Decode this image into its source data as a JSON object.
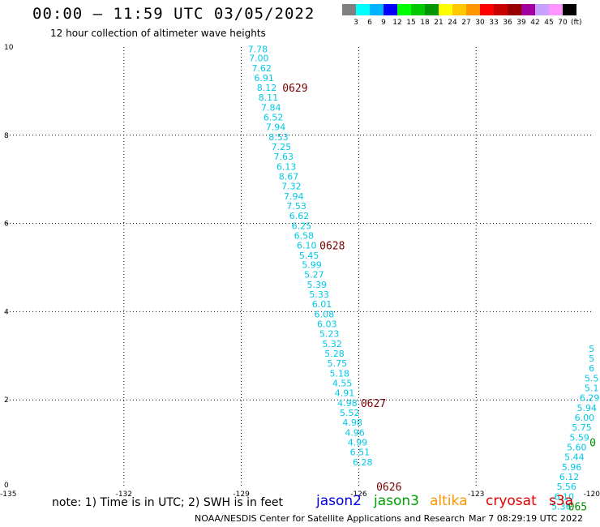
{
  "title": "00:00 – 11:59 UTC 03/05/2022",
  "subtitle": "12 hour collection of altimeter wave heights",
  "color_scale": {
    "labels": [
      "3",
      "6",
      "9",
      "12",
      "15",
      "18",
      "21",
      "24",
      "27",
      "30",
      "33",
      "36",
      "39",
      "42",
      "45",
      "70"
    ],
    "unit": "(ft)",
    "colors": [
      "#808080",
      "#00ffff",
      "#00b4ff",
      "#0000ff",
      "#00ff00",
      "#00c800",
      "#009600",
      "#ffff00",
      "#ffc800",
      "#ff9600",
      "#ff0000",
      "#c80000",
      "#960000",
      "#a000a0",
      "#c8a0ff",
      "#ff96ff",
      "#000000"
    ]
  },
  "map": {
    "lon_range": [
      -135,
      -120
    ],
    "lat_range": [
      0,
      10
    ],
    "x_ticks": [
      "-135",
      "-132",
      "-129",
      "-126",
      "-123",
      "-120"
    ],
    "y_ticks": [
      "0",
      "2",
      "4",
      "6",
      "8",
      "10"
    ]
  },
  "tracks": [
    {
      "color": "#00c8e6",
      "points": [
        {
          "lon": -128.58,
          "lat": 9.95,
          "v": "7.78"
        },
        {
          "lon": -128.55,
          "lat": 9.75,
          "v": "7.00"
        },
        {
          "lon": -128.48,
          "lat": 9.52,
          "v": "7.62"
        },
        {
          "lon": -128.42,
          "lat": 9.3,
          "v": "6.91"
        },
        {
          "lon": -128.35,
          "lat": 9.08,
          "v": "8.12"
        },
        {
          "lon": -128.31,
          "lat": 8.86,
          "v": "8.11"
        },
        {
          "lon": -128.24,
          "lat": 8.63,
          "v": "7.84"
        },
        {
          "lon": -128.18,
          "lat": 8.41,
          "v": "6.52"
        },
        {
          "lon": -128.12,
          "lat": 8.19,
          "v": "7.94"
        },
        {
          "lon": -128.05,
          "lat": 7.96,
          "v": "8.53"
        },
        {
          "lon": -127.98,
          "lat": 7.74,
          "v": "7.25"
        },
        {
          "lon": -127.92,
          "lat": 7.52,
          "v": "7.63"
        },
        {
          "lon": -127.85,
          "lat": 7.29,
          "v": "6.13"
        },
        {
          "lon": -127.79,
          "lat": 7.07,
          "v": "8.67"
        },
        {
          "lon": -127.72,
          "lat": 6.85,
          "v": "7.32"
        },
        {
          "lon": -127.66,
          "lat": 6.62,
          "v": "7.94"
        },
        {
          "lon": -127.59,
          "lat": 6.4,
          "v": "7.53"
        },
        {
          "lon": -127.52,
          "lat": 6.18,
          "v": "6.62"
        },
        {
          "lon": -127.46,
          "lat": 5.95,
          "v": "6.25"
        },
        {
          "lon": -127.4,
          "lat": 5.73,
          "v": "6.58"
        },
        {
          "lon": -127.33,
          "lat": 5.51,
          "v": "6.10"
        },
        {
          "lon": -127.27,
          "lat": 5.28,
          "v": "5.45"
        },
        {
          "lon": -127.2,
          "lat": 5.06,
          "v": "5.99"
        },
        {
          "lon": -127.14,
          "lat": 4.84,
          "v": "5.27"
        },
        {
          "lon": -127.07,
          "lat": 4.61,
          "v": "5.39"
        },
        {
          "lon": -127.01,
          "lat": 4.39,
          "v": "5.33"
        },
        {
          "lon": -126.94,
          "lat": 4.17,
          "v": "6.01"
        },
        {
          "lon": -126.88,
          "lat": 3.94,
          "v": "6.08"
        },
        {
          "lon": -126.81,
          "lat": 3.72,
          "v": "6.03"
        },
        {
          "lon": -126.75,
          "lat": 3.5,
          "v": "5.23"
        },
        {
          "lon": -126.68,
          "lat": 3.27,
          "v": "5.32"
        },
        {
          "lon": -126.62,
          "lat": 3.05,
          "v": "5.28"
        },
        {
          "lon": -126.55,
          "lat": 2.83,
          "v": "5.75"
        },
        {
          "lon": -126.49,
          "lat": 2.6,
          "v": "5.18"
        },
        {
          "lon": -126.42,
          "lat": 2.38,
          "v": "4.55"
        },
        {
          "lon": -126.36,
          "lat": 2.16,
          "v": "4.91"
        },
        {
          "lon": -126.29,
          "lat": 1.93,
          "v": "4.98"
        },
        {
          "lon": -126.23,
          "lat": 1.71,
          "v": "5.52"
        },
        {
          "lon": -126.16,
          "lat": 1.49,
          "v": "4.98"
        },
        {
          "lon": -126.1,
          "lat": 1.26,
          "v": "4.96"
        },
        {
          "lon": -126.03,
          "lat": 1.04,
          "v": "4.99"
        },
        {
          "lon": -125.97,
          "lat": 0.82,
          "v": "6.51"
        },
        {
          "lon": -125.9,
          "lat": 0.59,
          "v": "6.28"
        }
      ]
    },
    {
      "color": "#00c8e6",
      "points": [
        {
          "lon": -120.05,
          "lat": 3.16,
          "v": "5"
        },
        {
          "lon": -120.05,
          "lat": 2.94,
          "v": "5"
        },
        {
          "lon": -120.05,
          "lat": 2.72,
          "v": "6"
        },
        {
          "lon": -120.05,
          "lat": 2.49,
          "v": "5.5"
        },
        {
          "lon": -120.05,
          "lat": 2.27,
          "v": "5.1"
        },
        {
          "lon": -120.1,
          "lat": 2.05,
          "v": "6.29"
        },
        {
          "lon": -120.17,
          "lat": 1.82,
          "v": "5.94"
        },
        {
          "lon": -120.23,
          "lat": 1.6,
          "v": "6.00"
        },
        {
          "lon": -120.3,
          "lat": 1.38,
          "v": "5.75"
        },
        {
          "lon": -120.36,
          "lat": 1.15,
          "v": "5.59"
        },
        {
          "lon": -120.43,
          "lat": 0.93,
          "v": "5.60"
        },
        {
          "lon": -120.49,
          "lat": 0.71,
          "v": "5.44"
        },
        {
          "lon": -120.56,
          "lat": 0.48,
          "v": "5.96"
        },
        {
          "lon": -120.62,
          "lat": 0.26,
          "v": "6.12"
        },
        {
          "lon": -120.69,
          "lat": 0.04,
          "v": "5.56"
        },
        {
          "lon": -120.75,
          "lat": -0.19,
          "v": "6.10"
        },
        {
          "lon": -120.82,
          "lat": -0.41,
          "v": "5.36"
        }
      ]
    }
  ],
  "time_labels": [
    {
      "lon": -127.95,
      "lat": 9.08,
      "text": "0629",
      "color": "#7a0000"
    },
    {
      "lon": -127.0,
      "lat": 5.51,
      "text": "0628",
      "color": "#7a0000"
    },
    {
      "lon": -125.95,
      "lat": 1.93,
      "text": "0627",
      "color": "#7a0000"
    },
    {
      "lon": -125.55,
      "lat": 0.04,
      "text": "0626",
      "color": "#7a0000"
    },
    {
      "lon": -120.1,
      "lat": 1.04,
      "text": "0",
      "color": "#008c00"
    },
    {
      "lon": -120.65,
      "lat": -0.41,
      "text": "065",
      "color": "#008c00"
    }
  ],
  "note": "note:  1) Time is in UTC;  2) SWH is in feet",
  "satellites": [
    {
      "name": "jason2",
      "color": "#0000e6"
    },
    {
      "name": "jason3",
      "color": "#00a000"
    },
    {
      "name": "altika",
      "color": "#ff9600"
    },
    {
      "name": "cryosat",
      "color": "#e60000"
    },
    {
      "name": "s3a",
      "color": "#c80000"
    }
  ],
  "credit": "NOAA/NESDIS Center for Satellite Applications and Research",
  "timestamp": "Mar  7 08:29:19 UTC 2022"
}
